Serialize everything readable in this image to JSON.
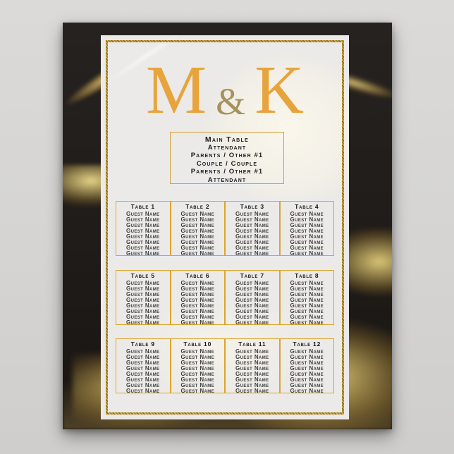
{
  "mockup": {
    "background_color": "#d5d4d2"
  },
  "poster": {
    "background_color": "#211d1a",
    "accent_gold": "#dca42e",
    "monogram": {
      "left": "M",
      "amp": "&",
      "right": "K",
      "initial_color": "#e8a43c",
      "amp_color": "#a6925c"
    },
    "main_table": {
      "title": "Main Table",
      "lines": [
        "Attendant",
        "Parents / Other #1",
        "Couple / Couple",
        "Parents / Other #1",
        "Attendant"
      ]
    },
    "tables": [
      {
        "label": "Table 1",
        "guests": [
          "Guest Name",
          "Guest Name",
          "Guest Name",
          "Guest Name",
          "Guest Name",
          "Guest Name",
          "Guest Name",
          "Guest Name"
        ]
      },
      {
        "label": "Table 2",
        "guests": [
          "Guest Name",
          "Guest Name",
          "Guest Name",
          "Guest Name",
          "Guest Name",
          "Guest Name",
          "Guest Name",
          "Guest Name"
        ]
      },
      {
        "label": "Table 3",
        "guests": [
          "Guest Name",
          "Guest Name",
          "Guest Name",
          "Guest Name",
          "Guest Name",
          "Guest Name",
          "Guest Name",
          "Guest Name"
        ]
      },
      {
        "label": "Table 4",
        "guests": [
          "Guest Name",
          "Guest Name",
          "Guest Name",
          "Guest Name",
          "Guest Name",
          "Guest Name",
          "Guest Name",
          "Guest Name"
        ]
      },
      {
        "label": "Table 5",
        "guests": [
          "Guest Name",
          "Guest Name",
          "Guest Name",
          "Guest Name",
          "Guest Name",
          "Guest Name",
          "Guest Name",
          "Guest Name"
        ]
      },
      {
        "label": "Table 6",
        "guests": [
          "Guest Name",
          "Guest Name",
          "Guest Name",
          "Guest Name",
          "Guest Name",
          "Guest Name",
          "Guest Name",
          "Guest Name"
        ]
      },
      {
        "label": "Table 7",
        "guests": [
          "Guest Name",
          "Guest Name",
          "Guest Name",
          "Guest Name",
          "Guest Name",
          "Guest Name",
          "Guest Name",
          "Guest Name"
        ]
      },
      {
        "label": "Table 8",
        "guests": [
          "Guest Name",
          "Guest Name",
          "Guest Name",
          "Guest Name",
          "Guest Name",
          "Guest Name",
          "Guest Name",
          "Guest Name"
        ]
      },
      {
        "label": "Table 9",
        "guests": [
          "Guest Name",
          "Guest Name",
          "Guest Name",
          "Guest Name",
          "Guest Name",
          "Guest Name",
          "Guest Name",
          "Guest Name"
        ]
      },
      {
        "label": "Table 10",
        "guests": [
          "Guest Name",
          "Guest Name",
          "Guest Name",
          "Guest Name",
          "Guest Name",
          "Guest Name",
          "Guest Name",
          "Guest Name"
        ]
      },
      {
        "label": "Table 11",
        "guests": [
          "Guest Name",
          "Guest Name",
          "Guest Name",
          "Guest Name",
          "Guest Name",
          "Guest Name",
          "Guest Name",
          "Guest Name"
        ]
      },
      {
        "label": "Table 12",
        "guests": [
          "Guest Name",
          "Guest Name",
          "Guest Name",
          "Guest Name",
          "Guest Name",
          "Guest Name",
          "Guest Name",
          "Guest Name"
        ]
      }
    ]
  }
}
